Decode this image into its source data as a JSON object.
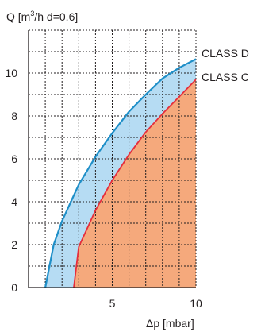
{
  "chart_data": {
    "type": "area",
    "title": "",
    "ylabel": {
      "prefix": "Q  [m",
      "sup": "3",
      "suffix": "/h d=0.6]"
    },
    "xlabel": "Δp [mbar]",
    "xlim": [
      0,
      10
    ],
    "ylim": [
      0,
      12
    ],
    "x_ticks": [
      5,
      10
    ],
    "y_ticks": [
      0,
      2,
      4,
      6,
      8,
      10
    ],
    "grid": true,
    "series": [
      {
        "name": "CLASS D",
        "color": "#1f8fc8",
        "fill": "#b6dcf3",
        "points": [
          [
            1.0,
            0
          ],
          [
            1.5,
            2.0
          ],
          [
            2.0,
            3.1
          ],
          [
            3.0,
            4.8
          ],
          [
            4.0,
            6.1
          ],
          [
            5.0,
            7.2
          ],
          [
            6.0,
            8.2
          ],
          [
            7.0,
            9.0
          ],
          [
            8.0,
            9.75
          ],
          [
            9.0,
            10.25
          ],
          [
            10.0,
            10.65
          ]
        ]
      },
      {
        "name": "CLASS C",
        "color": "#e52d3b",
        "fill": "#f5a97c",
        "points": [
          [
            2.7,
            0
          ],
          [
            3.0,
            1.9
          ],
          [
            4.0,
            3.6
          ],
          [
            5.0,
            5.0
          ],
          [
            6.0,
            6.2
          ],
          [
            7.0,
            7.25
          ],
          [
            8.0,
            8.1
          ],
          [
            9.0,
            8.9
          ],
          [
            10.0,
            9.7
          ]
        ]
      }
    ]
  }
}
